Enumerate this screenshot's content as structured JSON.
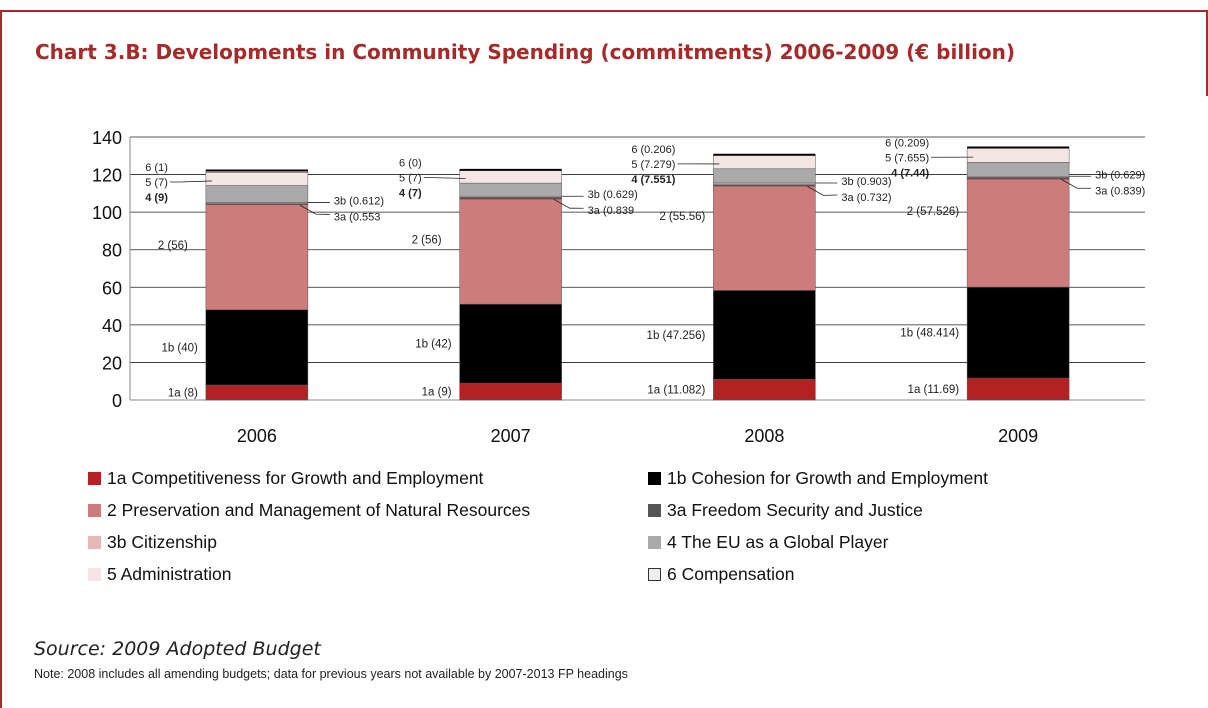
{
  "title": "Chart 3.B: Developments in Community Spending (commitments) 2006-2009 (€ billion)",
  "source": "Source: 2009 Adopted Budget",
  "note": "Note: 2008 includes all amending budgets; data for previous years not available by 2007-2013 FP headings",
  "chart_data": {
    "type": "bar",
    "stacked": true,
    "categories": [
      "2006",
      "2007",
      "2008",
      "2009"
    ],
    "ylim": [
      0,
      140
    ],
    "yticks": [
      0,
      20,
      40,
      60,
      80,
      100,
      120,
      140
    ],
    "grid": true,
    "legend_position": "bottom",
    "series": [
      {
        "key": "1a",
        "name": "1a Competitiveness for Growth and Employment",
        "color": "#b22222",
        "values": [
          8,
          9,
          11.082,
          11.69
        ],
        "labels": [
          "1a (8)",
          "1a (9)",
          "1a (11.082)",
          "1a (11.69)"
        ]
      },
      {
        "key": "1b",
        "name": "1b Cohesion for Growth and Employment",
        "color": "#000000",
        "values": [
          40,
          42,
          47.256,
          48.414
        ],
        "labels": [
          "1b (40)",
          "1b (42)",
          "1b (47.256)",
          "1b (48.414)"
        ]
      },
      {
        "key": "2",
        "name": "2 Preservation and Management of Natural Resources",
        "color": "#cd7b7b",
        "values": [
          56,
          56,
          55.56,
          57.526
        ],
        "labels": [
          "2 (56)",
          "2 (56)",
          "2 (55.56)",
          "2 (57.526)"
        ]
      },
      {
        "key": "3a",
        "name": "3a Freedom Security and Justice",
        "color": "#555555",
        "values": [
          0.553,
          0.839,
          0.732,
          0.839
        ],
        "labels": [
          "3a (0.553",
          "3a (0.839",
          "3a (0.732)",
          "3a (0.839)"
        ]
      },
      {
        "key": "3b",
        "name": "3b Citizenship",
        "color": "#e8b8b8",
        "values": [
          0.612,
          0.629,
          0.903,
          0.629
        ],
        "labels": [
          "3b (0.612)",
          "3b (0.629)",
          "3b (0.903)",
          "3b (0.629)"
        ]
      },
      {
        "key": "4",
        "name": "4 The EU as a Global Player",
        "color": "#aaaaaa",
        "values": [
          9,
          7,
          7.551,
          7.44
        ],
        "labels": [
          "4 (9)",
          "4 (7)",
          "4 (7.551)",
          "4 (7.44)"
        ]
      },
      {
        "key": "5",
        "name": "5 Administration",
        "color": "#f5e6e6",
        "values": [
          7,
          7,
          7.279,
          7.655
        ],
        "labels": [
          "5 (7)",
          "5 (7)",
          "5 (7.279)",
          "5 (7.655)"
        ]
      },
      {
        "key": "6",
        "name": "6 Compensation",
        "color": "#eeeeee",
        "values": [
          1,
          0,
          0.206,
          0.209
        ],
        "labels": [
          "6 (1)",
          "6 (0)",
          "6 (0.206)",
          "6 (0.209)"
        ]
      }
    ]
  }
}
